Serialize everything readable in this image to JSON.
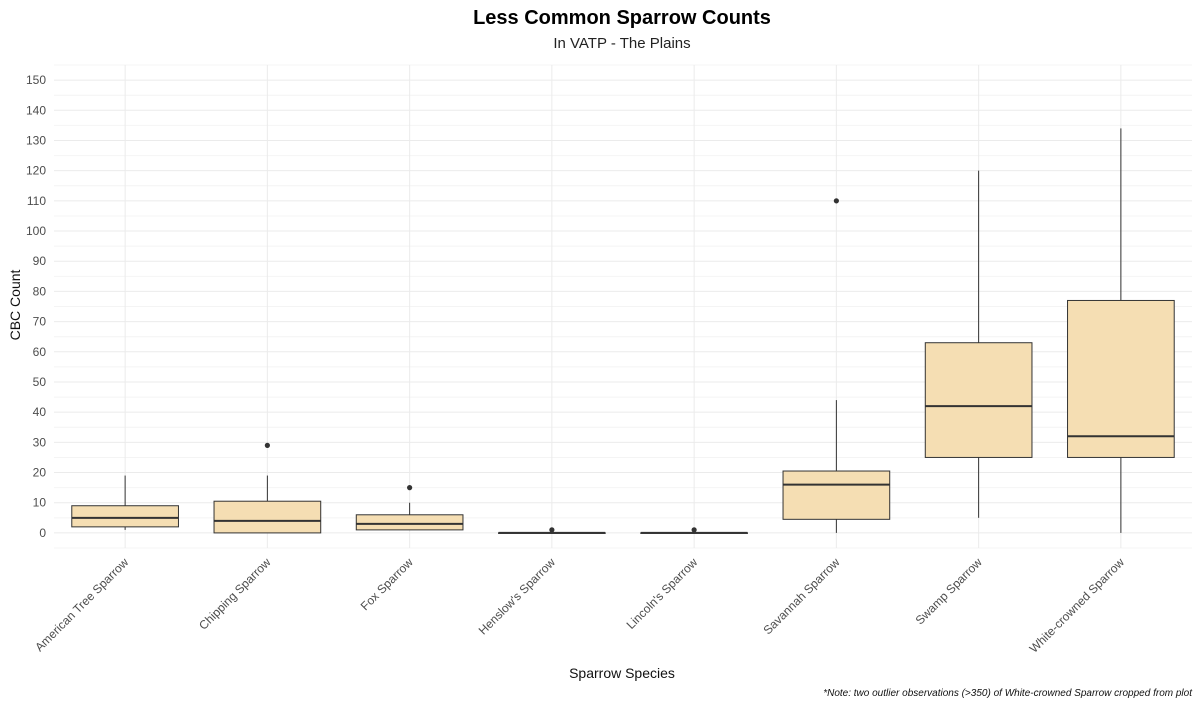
{
  "chart_data": {
    "type": "boxplot",
    "title": "Less Common Sparrow Counts",
    "subtitle": "In VATP - The Plains",
    "xlabel": "Sparrow Species",
    "ylabel": "CBC Count",
    "ylim": [
      -5,
      155
    ],
    "yticks": [
      0,
      10,
      20,
      30,
      40,
      50,
      60,
      70,
      80,
      90,
      100,
      110,
      120,
      130,
      140,
      150
    ],
    "grid": true,
    "legend": "none",
    "box_fill": "#F5DEB3",
    "line_color": "#333333",
    "categories": [
      "American Tree Sparrow",
      "Chipping Sparrow",
      "Fox Sparrow",
      "Henslow's Sparrow",
      "Lincoln's Sparrow",
      "Savannah Sparrow",
      "Swamp Sparrow",
      "White-crowned Sparrow"
    ],
    "boxes": [
      {
        "whisker_low": 1,
        "q1": 2,
        "median": 5,
        "q3": 9,
        "whisker_high": 19,
        "outliers": []
      },
      {
        "whisker_low": 0,
        "q1": 0,
        "median": 4,
        "q3": 10.5,
        "whisker_high": 19,
        "outliers": [
          29
        ]
      },
      {
        "whisker_low": 1,
        "q1": 1,
        "median": 3,
        "q3": 6,
        "whisker_high": 10,
        "outliers": [
          15
        ]
      },
      {
        "whisker_low": 0,
        "q1": 0,
        "median": 0,
        "q3": 0,
        "whisker_high": 0,
        "outliers": [
          1
        ]
      },
      {
        "whisker_low": 0,
        "q1": 0,
        "median": 0,
        "q3": 0,
        "whisker_high": 0,
        "outliers": [
          1
        ]
      },
      {
        "whisker_low": 0,
        "q1": 4.5,
        "median": 16,
        "q3": 20.5,
        "whisker_high": 44,
        "outliers": [
          110
        ]
      },
      {
        "whisker_low": 5,
        "q1": 25,
        "median": 42,
        "q3": 63,
        "whisker_high": 120,
        "outliers": []
      },
      {
        "whisker_low": 0,
        "q1": 25,
        "median": 32,
        "q3": 77,
        "whisker_high": 134,
        "outliers": []
      }
    ]
  },
  "note": "*Note: two outlier observations (>350) of White-crowned Sparrow cropped from plot"
}
